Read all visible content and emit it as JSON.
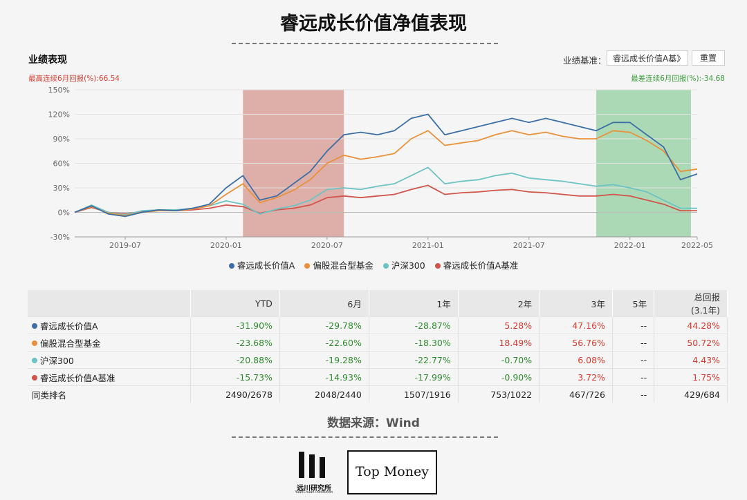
{
  "page": {
    "title": "睿远成长价值净值表现",
    "source": "数据来源：Wind"
  },
  "section": {
    "title": "业绩表现",
    "benchmark_label": "业绩基准：",
    "benchmark_value": "睿远成长价值A基》",
    "reset_label": "重置"
  },
  "stats": {
    "best_label": "最高连续6月回报(%):",
    "best_value": "66.54",
    "worst_label": "最差连续6月回报(%):",
    "worst_value": "-34.68"
  },
  "colors": {
    "fund": "#3b6ea5",
    "peer": "#e8913a",
    "csi300": "#6cc3c3",
    "bench": "#d0544a",
    "best_band": "#d9a19b",
    "worst_band": "#9fd3a9"
  },
  "chart_data": {
    "type": "line",
    "ylim": [
      -30,
      150
    ],
    "yticks": [
      "-30%",
      "0%",
      "30%",
      "60%",
      "90%",
      "120%",
      "150%"
    ],
    "xticks": [
      "2019-07",
      "2020-01",
      "2020-07",
      "2021-01",
      "2021-07",
      "2022-01",
      "2022-05"
    ],
    "x": [
      "2019-04",
      "2019-05",
      "2019-06",
      "2019-07",
      "2019-08",
      "2019-09",
      "2019-10",
      "2019-11",
      "2019-12",
      "2020-01",
      "2020-02",
      "2020-03",
      "2020-04",
      "2020-05",
      "2020-06",
      "2020-07",
      "2020-08",
      "2020-09",
      "2020-10",
      "2020-11",
      "2020-12",
      "2021-01",
      "2021-02",
      "2021-03",
      "2021-04",
      "2021-05",
      "2021-06",
      "2021-07",
      "2021-08",
      "2021-09",
      "2021-10",
      "2021-11",
      "2021-12",
      "2022-01",
      "2022-02",
      "2022-03",
      "2022-04",
      "2022-05"
    ],
    "series": [
      {
        "name": "睿远成长价值A",
        "values": [
          0,
          8,
          -2,
          -5,
          0,
          3,
          2,
          5,
          10,
          30,
          45,
          15,
          20,
          35,
          50,
          75,
          95,
          98,
          95,
          100,
          115,
          120,
          95,
          100,
          105,
          110,
          115,
          110,
          115,
          110,
          105,
          100,
          110,
          110,
          95,
          80,
          40,
          47
        ]
      },
      {
        "name": "偏股混合型基金",
        "values": [
          0,
          7,
          -1,
          -4,
          0,
          2,
          2,
          4,
          8,
          22,
          35,
          12,
          18,
          27,
          40,
          60,
          70,
          65,
          68,
          72,
          90,
          100,
          82,
          85,
          88,
          95,
          100,
          95,
          98,
          93,
          90,
          90,
          100,
          98,
          88,
          75,
          50,
          53
        ]
      },
      {
        "name": "沪深300",
        "values": [
          0,
          9,
          0,
          -3,
          2,
          3,
          3,
          5,
          8,
          14,
          10,
          -2,
          4,
          8,
          15,
          28,
          30,
          28,
          32,
          35,
          45,
          55,
          35,
          38,
          40,
          45,
          48,
          42,
          40,
          38,
          35,
          32,
          34,
          30,
          25,
          15,
          5,
          5
        ]
      },
      {
        "name": "睿远成长价值A基准",
        "values": [
          0,
          6,
          0,
          -2,
          1,
          2,
          2,
          3,
          5,
          9,
          7,
          -1,
          3,
          5,
          9,
          18,
          20,
          18,
          20,
          22,
          28,
          33,
          22,
          24,
          25,
          27,
          28,
          25,
          24,
          22,
          20,
          20,
          22,
          20,
          15,
          10,
          2,
          2
        ]
      }
    ],
    "bands": [
      {
        "from": "2020-02",
        "to": "2020-08"
      },
      {
        "from": "2021-11",
        "to": "2022-05"
      }
    ]
  },
  "legend": [
    "睿远成长价值A",
    "偏股混合型基金",
    "沪深300",
    "睿远成长价值A基准"
  ],
  "table": {
    "headers": [
      "",
      "YTD",
      "6月",
      "1年",
      "2年",
      "3年",
      "5年",
      "总回报",
      "(3.1年)"
    ],
    "rows": [
      {
        "name": "睿远成长价值A",
        "color": "#3b6ea5",
        "cells": [
          "-31.90%",
          "-29.78%",
          "-28.87%",
          "5.28%",
          "47.16%",
          "--",
          "44.28%"
        ]
      },
      {
        "name": "偏股混合型基金",
        "color": "#e8913a",
        "cells": [
          "-23.68%",
          "-22.60%",
          "-18.30%",
          "18.49%",
          "56.76%",
          "--",
          "50.72%"
        ]
      },
      {
        "name": "沪深300",
        "color": "#6cc3c3",
        "cells": [
          "-20.88%",
          "-19.28%",
          "-22.77%",
          "-0.70%",
          "6.08%",
          "--",
          "4.43%"
        ]
      },
      {
        "name": "睿远成长价值A基准",
        "color": "#d0544a",
        "cells": [
          "-15.73%",
          "-14.93%",
          "-17.99%",
          "-0.90%",
          "3.72%",
          "--",
          "1.75%"
        ]
      },
      {
        "name": "同类排名",
        "color": "",
        "cells": [
          "2490/2678",
          "2048/2440",
          "1507/1916",
          "753/1022",
          "467/726",
          "--",
          "429/684"
        ]
      }
    ]
  },
  "logos": {
    "yuanchuan": "远川研究所",
    "yuanchuan_sub": "YuanChuan Institution",
    "topmoney": "Top Money"
  }
}
